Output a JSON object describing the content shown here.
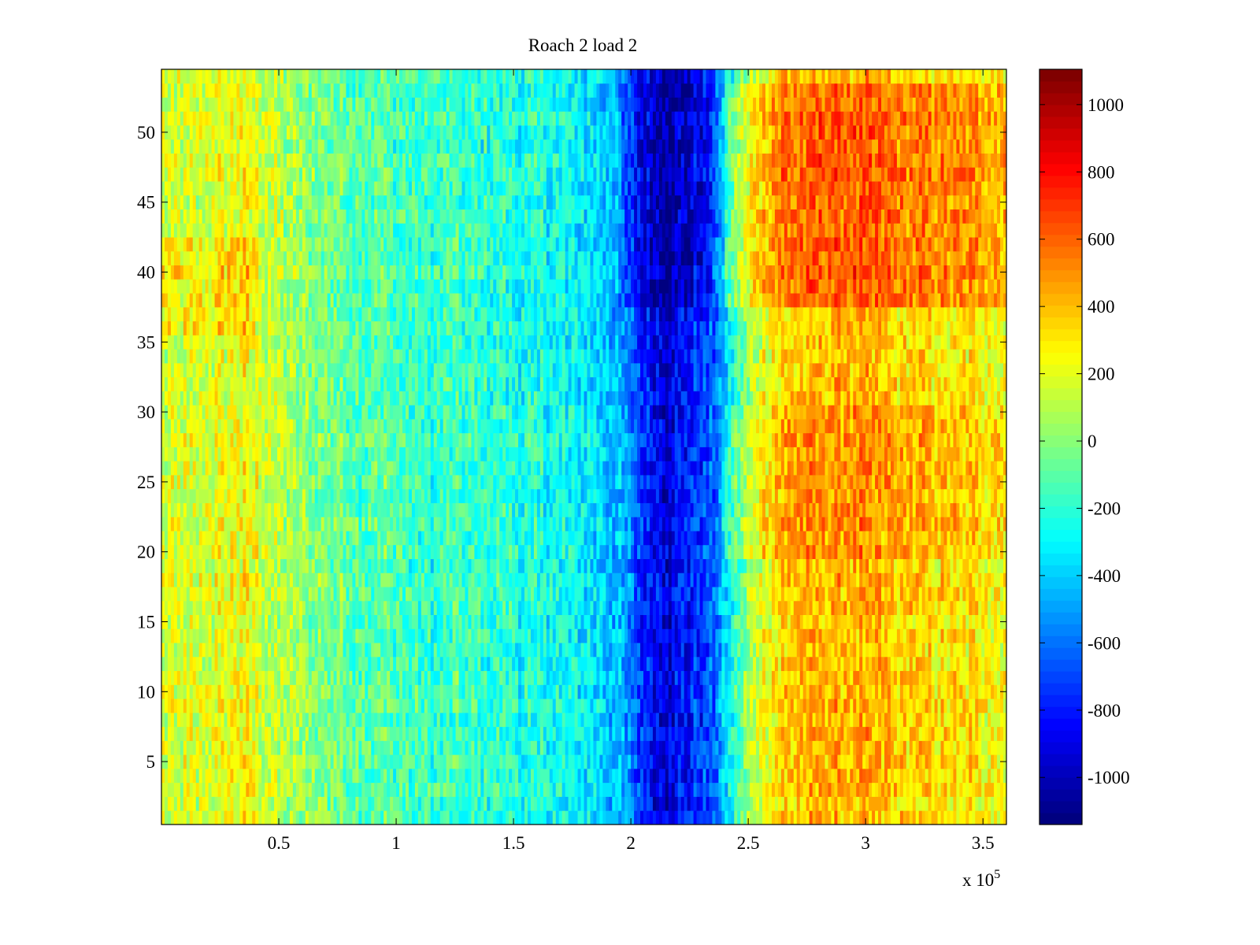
{
  "chart_data": {
    "type": "heatmap",
    "title": "Roach 2 load 2",
    "xlabel": "",
    "ylabel": "",
    "x_exponent_label": "x 10",
    "x_exponent": "5",
    "xlim": [
      0,
      360000
    ],
    "ylim": [
      0.5,
      54.5
    ],
    "rows": 54,
    "xticks": [
      50000,
      100000,
      150000,
      200000,
      250000,
      300000,
      350000
    ],
    "xtick_labels": [
      "0.5",
      "1",
      "1.5",
      "2",
      "2.5",
      "3",
      "3.5"
    ],
    "yticks": [
      5,
      10,
      15,
      20,
      25,
      30,
      35,
      40,
      45,
      50
    ],
    "ytick_labels": [
      "5",
      "10",
      "15",
      "20",
      "25",
      "30",
      "35",
      "40",
      "45",
      "50"
    ],
    "colormap": "jet",
    "clim": [
      -1140,
      1105
    ],
    "colorbar_ticks": [
      1000,
      800,
      600,
      400,
      200,
      0,
      -200,
      -400,
      -600,
      -800,
      -1000
    ],
    "colorbar_tick_labels": [
      "1000",
      "800",
      "600",
      "400",
      "200",
      "0",
      "-200",
      "-400",
      "-600",
      "-800",
      "-1000"
    ],
    "column_bin_width": 10000,
    "column_mean_profile": [
      150,
      150,
      200,
      250,
      150,
      50,
      0,
      -50,
      -100,
      -100,
      -150,
      -200,
      -150,
      -200,
      -200,
      -250,
      -250,
      -300,
      -350,
      -450,
      -750,
      -900,
      -800,
      -650,
      -150,
      200,
      350,
      400,
      420,
      420,
      400,
      350,
      350,
      300,
      300,
      250
    ],
    "regions": [
      {
        "x": [
          240000,
          360000
        ],
        "y": [
          38,
          53
        ],
        "offset": 200
      },
      {
        "x": [
          195000,
          235000
        ],
        "y": [
          38,
          54
        ],
        "offset": -150
      },
      {
        "x": [
          240000,
          360000
        ],
        "y": [
          20,
          30
        ],
        "offset": 80
      },
      {
        "x": [
          0,
          40000
        ],
        "y": [
          36,
          42
        ],
        "offset": 120
      }
    ],
    "noise_amplitude": 220
  }
}
